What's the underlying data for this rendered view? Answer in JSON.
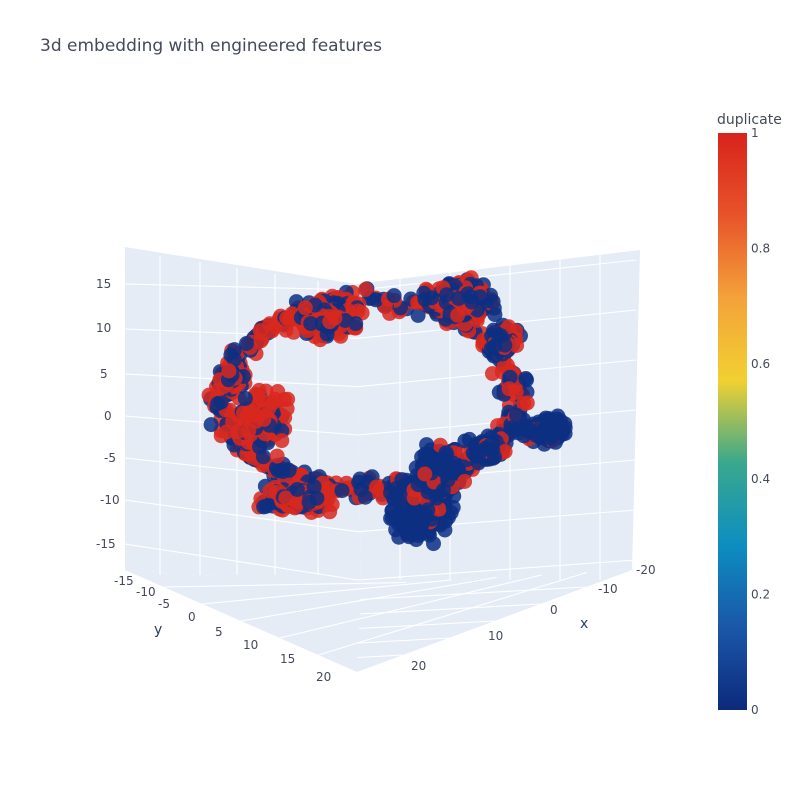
{
  "chart_data": {
    "type": "scatter3d",
    "title": "3d embedding with engineered features",
    "axes": {
      "x": {
        "label": "x",
        "ticks": [
          -20,
          -10,
          0,
          10,
          20
        ],
        "range": [
          -22,
          27
        ]
      },
      "y": {
        "label": "y",
        "ticks": [
          -15,
          -10,
          -5,
          0,
          5,
          10,
          15,
          20
        ],
        "range": [
          -16,
          22
        ]
      },
      "z": {
        "label": "",
        "ticks": [
          -15,
          -10,
          -5,
          0,
          5,
          10,
          15
        ],
        "range": [
          -18,
          19
        ]
      }
    },
    "color_axis": {
      "title": "duplicate",
      "range": [
        0,
        1
      ],
      "ticks": [
        "0",
        "0.2",
        "0.4",
        "0.6",
        "0.8",
        "1"
      ],
      "colorscale": [
        "#0d2a7c",
        "#1b57a8",
        "#0d8ec1",
        "#3aa88d",
        "#f1d032",
        "#f4a23a",
        "#e8532a",
        "#d8231c"
      ]
    },
    "grid": true,
    "legend": "colorbar-right",
    "series": [
      {
        "duplicate": 0,
        "color": "#0d2f83"
      },
      {
        "duplicate": 1,
        "color": "#d8281f"
      }
    ]
  }
}
